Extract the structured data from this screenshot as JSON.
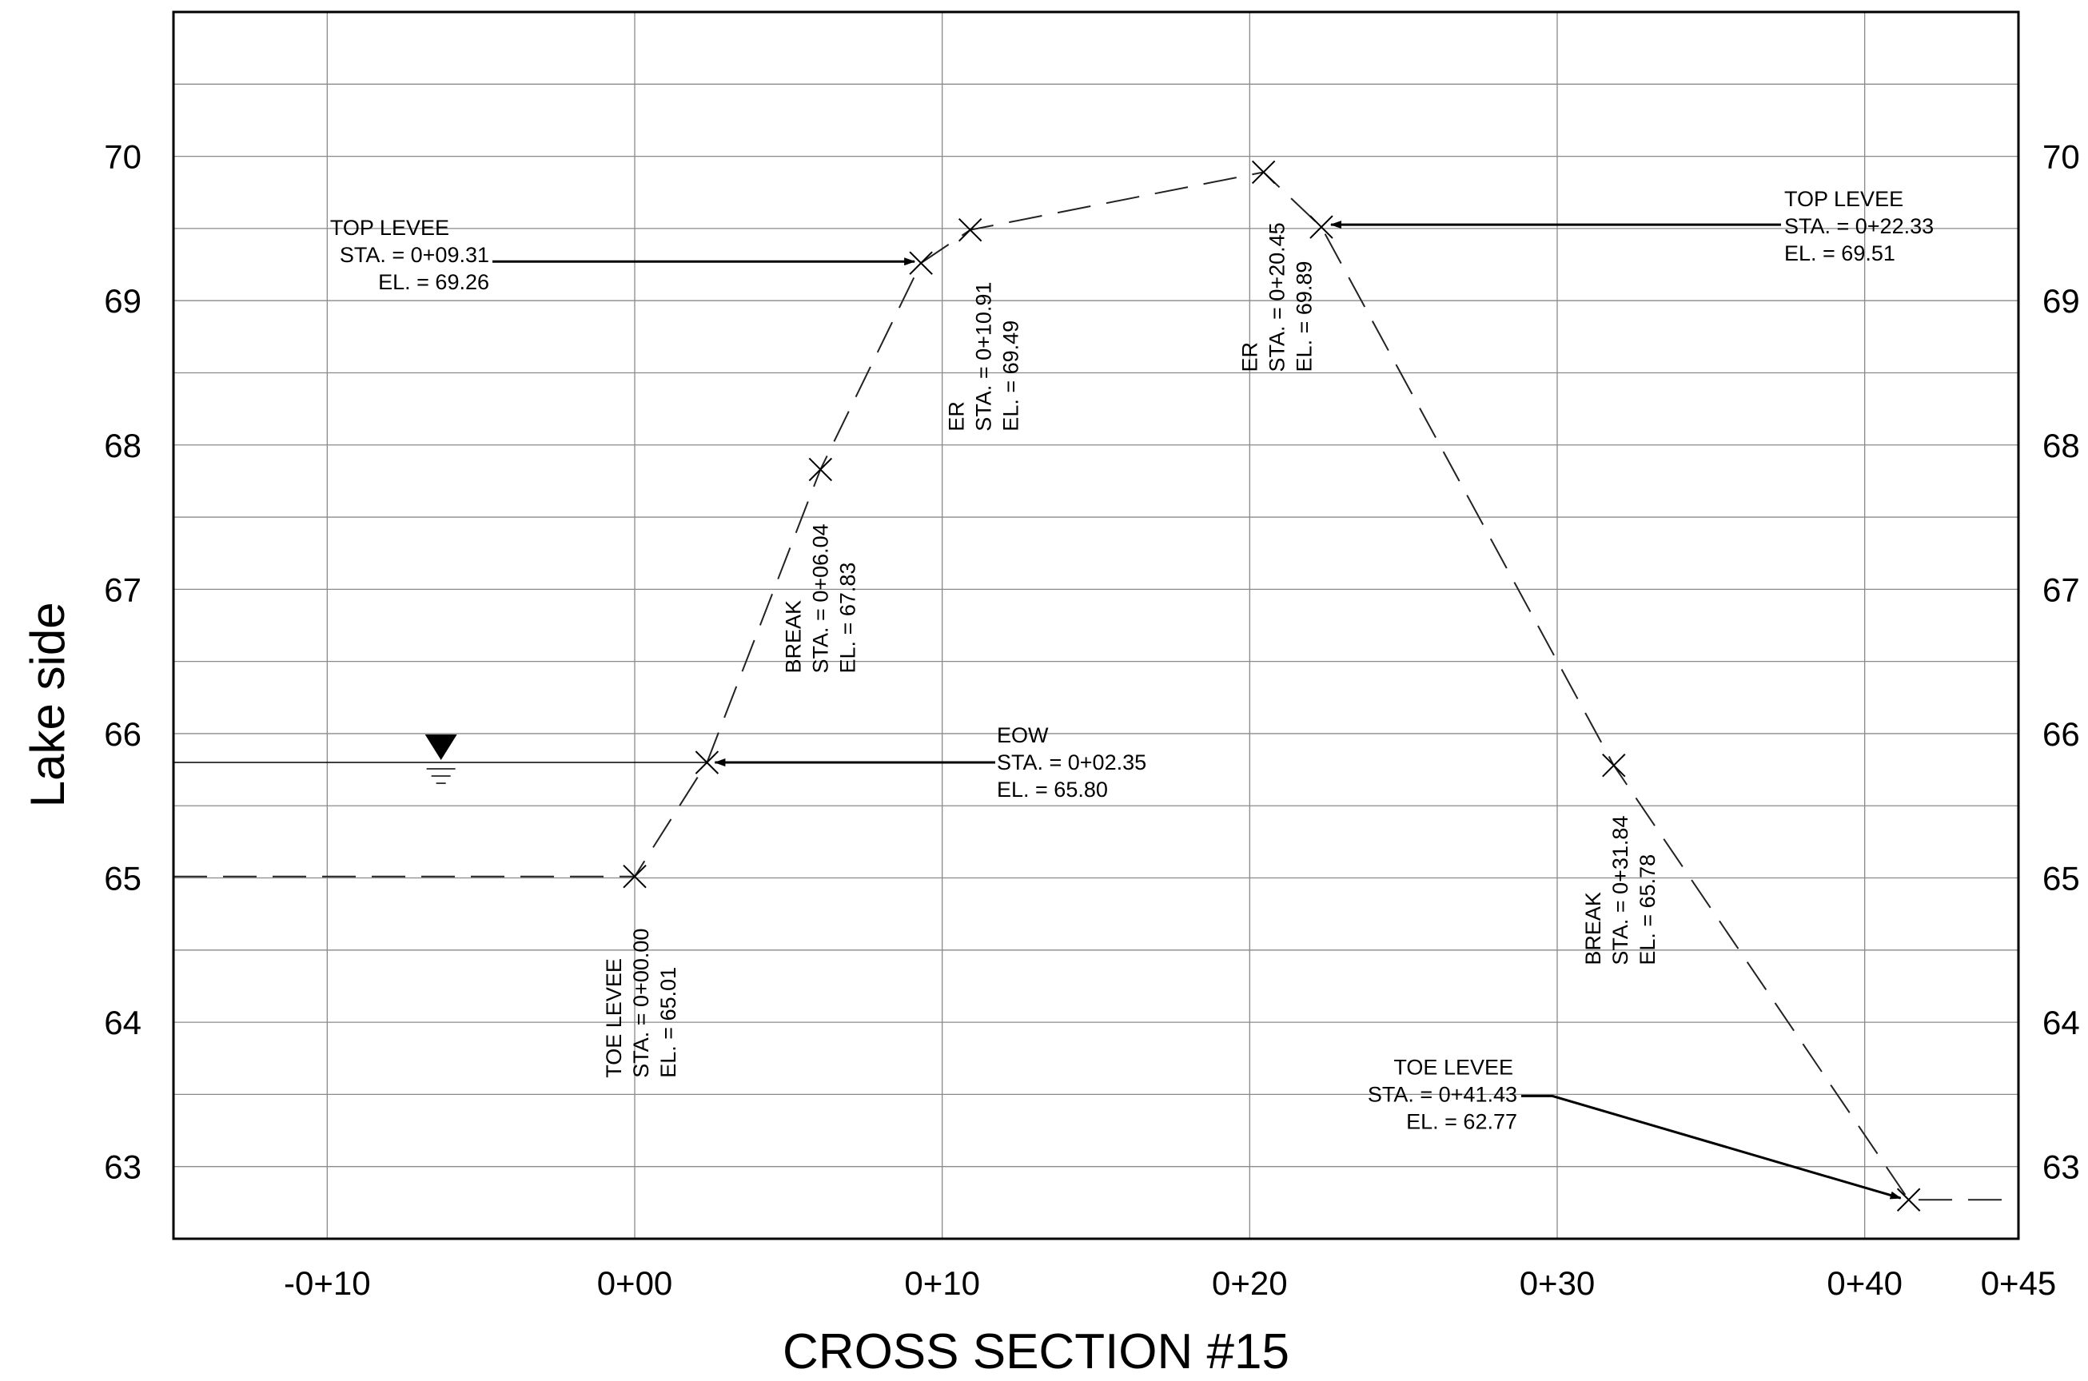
{
  "chart_data": {
    "type": "line",
    "title": "CROSS SECTION #15",
    "xlabel": "",
    "ylabel": "Lake side",
    "xlim": [
      -15,
      45
    ],
    "ylim": [
      62.5,
      71
    ],
    "x_ticks": [
      {
        "value": -10,
        "label": "-0+10"
      },
      {
        "value": 0,
        "label": "0+00"
      },
      {
        "value": 10,
        "label": "0+10"
      },
      {
        "value": 20,
        "label": "0+20"
      },
      {
        "value": 30,
        "label": "0+30"
      },
      {
        "value": 40,
        "label": "0+40"
      },
      {
        "value": 45,
        "label": "0+45"
      }
    ],
    "y_ticks": [
      63,
      64,
      65,
      66,
      67,
      68,
      69,
      70
    ],
    "grid": true,
    "series": [
      {
        "values": [
          {
            "x": -15,
            "y": 65.01
          },
          {
            "x": 0,
            "y": 65.01
          },
          {
            "x": 2.35,
            "y": 65.8
          },
          {
            "x": 6.04,
            "y": 67.83
          },
          {
            "x": 9.31,
            "y": 69.26
          },
          {
            "x": 10.91,
            "y": 69.49
          },
          {
            "x": 20.45,
            "y": 69.89
          },
          {
            "x": 22.33,
            "y": 69.51
          },
          {
            "x": 31.84,
            "y": 65.78
          },
          {
            "x": 41.43,
            "y": 62.77
          },
          {
            "x": 45,
            "y": 62.77
          }
        ]
      }
    ],
    "markers": [
      {
        "x": 0,
        "y": 65.01
      },
      {
        "x": 2.35,
        "y": 65.8
      },
      {
        "x": 6.04,
        "y": 67.83
      },
      {
        "x": 9.31,
        "y": 69.26
      },
      {
        "x": 10.91,
        "y": 69.49
      },
      {
        "x": 20.45,
        "y": 69.89
      },
      {
        "x": 22.33,
        "y": 69.51
      },
      {
        "x": 31.84,
        "y": 65.78
      },
      {
        "x": 41.43,
        "y": 62.77
      }
    ],
    "water_level": {
      "y": 65.8,
      "symbol_x": -6.3
    },
    "annotations": [
      {
        "id": "toe-levee-left",
        "lines": [
          "TOE LEVEE",
          "STA. = 0+00.00",
          "EL. = 65.01"
        ],
        "x": 0,
        "y": 65.01
      },
      {
        "id": "eow",
        "lines": [
          "EOW",
          "STA. = 0+02.35",
          "EL. = 65.80"
        ],
        "x": 2.35,
        "y": 65.8
      },
      {
        "id": "break-left",
        "lines": [
          "BREAK",
          "STA. = 0+06.04",
          "EL. = 67.83"
        ],
        "x": 6.04,
        "y": 67.83
      },
      {
        "id": "top-levee-left",
        "lines": [
          "TOP LEVEE",
          "STA. = 0+09.31",
          "EL. = 69.26"
        ],
        "x": 9.31,
        "y": 69.26
      },
      {
        "id": "er-left",
        "lines": [
          "ER",
          "STA. = 0+10.91",
          "EL. = 69.49"
        ],
        "x": 10.91,
        "y": 69.49
      },
      {
        "id": "er-right",
        "lines": [
          "ER",
          "STA. = 0+20.45",
          "EL. = 69.89"
        ],
        "x": 20.45,
        "y": 69.89
      },
      {
        "id": "top-levee-right",
        "lines": [
          "TOP LEVEE",
          "STA. = 0+22.33",
          "EL. = 69.51"
        ],
        "x": 22.33,
        "y": 69.51
      },
      {
        "id": "break-right",
        "lines": [
          "BREAK",
          "STA. = 0+31.84",
          "EL. = 65.78"
        ],
        "x": 31.84,
        "y": 65.78
      },
      {
        "id": "toe-levee-right",
        "lines": [
          "TOE LEVEE",
          "STA. = 0+41.43",
          "EL. = 62.77"
        ],
        "x": 41.43,
        "y": 62.77
      }
    ]
  }
}
